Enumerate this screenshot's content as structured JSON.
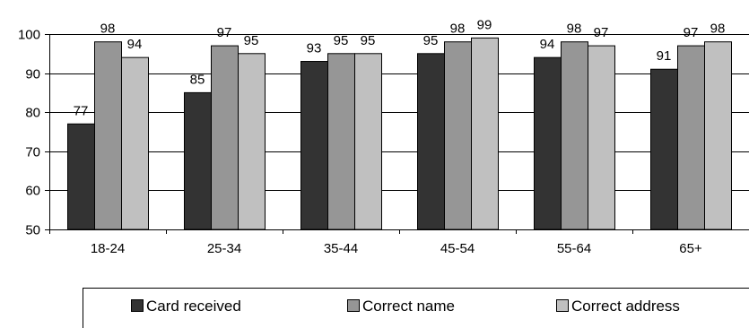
{
  "chart_data": {
    "type": "bar",
    "title": "",
    "xlabel": "",
    "ylabel": "",
    "categories": [
      "18-24",
      "25-34",
      "35-44",
      "45-54",
      "55-64",
      "65+"
    ],
    "series": [
      {
        "name": "Card received",
        "values": [
          77,
          85,
          93,
          95,
          94,
          91
        ],
        "color": "#333333"
      },
      {
        "name": "Correct name",
        "values": [
          98,
          97,
          95,
          98,
          98,
          97
        ],
        "color": "#969696"
      },
      {
        "name": "Correct address",
        "values": [
          94,
          95,
          95,
          99,
          97,
          98
        ],
        "color": "#c0c0c0"
      }
    ],
    "data_labels": [
      [
        "77",
        "85",
        "93",
        "95",
        "94",
        "91"
      ],
      [
        "98",
        "97",
        "95",
        "98",
        "98",
        "97"
      ],
      [
        "94",
        "95",
        "95",
        "99",
        "97",
        "98"
      ]
    ],
    "ylim": [
      50,
      100
    ],
    "yticks": [
      50,
      60,
      70,
      80,
      90,
      100
    ],
    "grid": true,
    "legend_position": "bottom"
  }
}
